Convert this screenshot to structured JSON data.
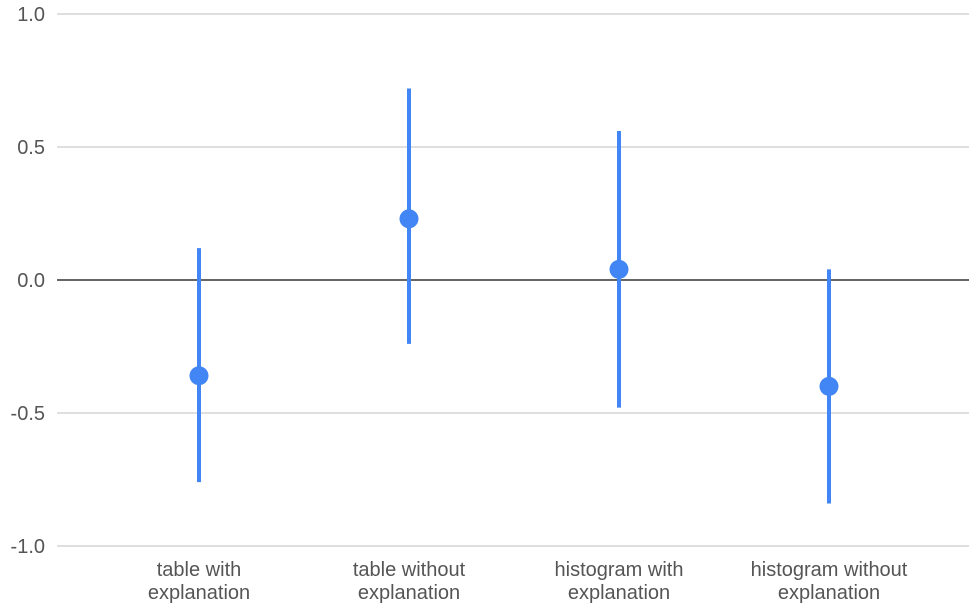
{
  "chart_data": {
    "type": "scatter",
    "subtype": "point-with-error-bars",
    "title": "",
    "xlabel": "",
    "ylabel": "",
    "ylim": [
      -1.0,
      1.0
    ],
    "yticks": [
      "1.0",
      "0.5",
      "0.0",
      "-0.5",
      "-1.0"
    ],
    "ytick_values": [
      1.0,
      0.5,
      0.0,
      -0.5,
      -1.0
    ],
    "grid": true,
    "legend": "none",
    "categories": [
      [
        "table with",
        "explanation"
      ],
      [
        "table without",
        "explanation"
      ],
      [
        "histogram with",
        "explanation"
      ],
      [
        "histogram without",
        "explanation"
      ]
    ],
    "series": [
      {
        "values": [
          -0.36,
          0.23,
          0.04,
          -0.4
        ],
        "lower": [
          -0.76,
          -0.24,
          -0.48,
          -0.84
        ],
        "upper": [
          0.12,
          0.72,
          0.56,
          0.04
        ]
      }
    ],
    "colors": {
      "series": "#4285f4",
      "grid": "#cccccc",
      "zero_line": "#333333",
      "text": "#555555"
    }
  }
}
